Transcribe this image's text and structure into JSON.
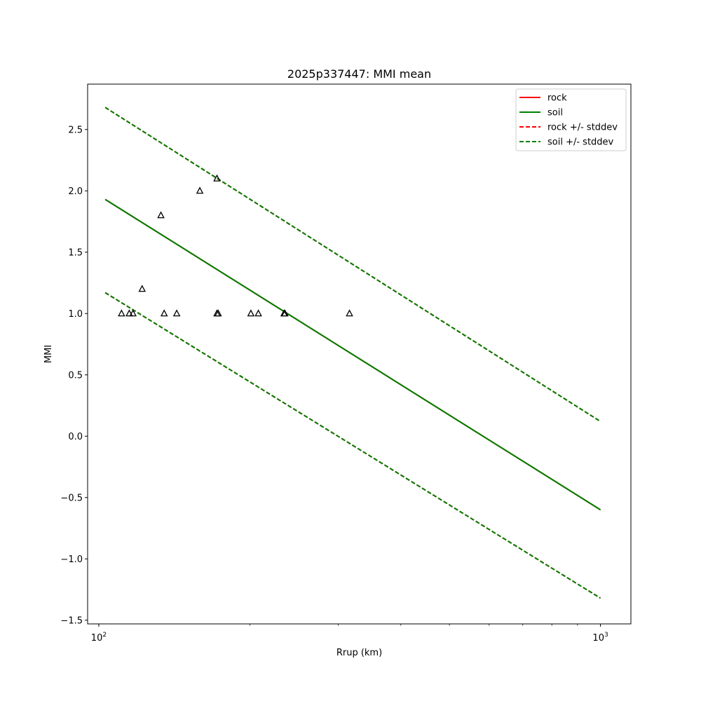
{
  "chart_data": {
    "type": "line",
    "title": "2025p337447: MMI mean",
    "xlabel": "Rrup (km)",
    "ylabel": "MMI",
    "xscale": "log",
    "xlim": [
      95,
      1150
    ],
    "ylim": [
      -1.53,
      2.87
    ],
    "x_ticks": [
      {
        "value": 100,
        "base": "10",
        "exp": "2"
      },
      {
        "value": 1000,
        "base": "10",
        "exp": "3"
      }
    ],
    "y_ticks": [
      -1.5,
      -1.0,
      -0.5,
      0.0,
      0.5,
      1.0,
      1.5,
      2.0,
      2.5
    ],
    "y_tick_labels": [
      "−1.5",
      "−1.0",
      "−0.5",
      "0.0",
      "0.5",
      "1.0",
      "1.5",
      "2.0",
      "2.5"
    ],
    "grid": false,
    "legend_position": "top-right",
    "series": [
      {
        "name": "rock",
        "style": "solid",
        "color": "#ff0000",
        "x": [
          103,
          1000
        ],
        "y": [
          1.93,
          -0.6
        ]
      },
      {
        "name": "soil",
        "style": "solid",
        "color": "#008000",
        "x": [
          103,
          1000
        ],
        "y": [
          1.93,
          -0.6
        ]
      },
      {
        "name": "rock +/- stddev",
        "style": "dashed",
        "color": "#ff0000",
        "x": [
          103,
          1000
        ],
        "y_upper": [
          2.68,
          0.12
        ],
        "y_lower": [
          1.17,
          -1.32
        ]
      },
      {
        "name": "soil +/- stddev",
        "style": "dashed",
        "color": "#008000",
        "x": [
          103,
          1000
        ],
        "y_upper": [
          2.68,
          0.12
        ],
        "y_lower": [
          1.17,
          -1.32
        ]
      }
    ],
    "observations": {
      "marker": "triangle",
      "points": [
        {
          "x": 111,
          "y": 1.0
        },
        {
          "x": 115,
          "y": 1.0
        },
        {
          "x": 117,
          "y": 1.0
        },
        {
          "x": 122,
          "y": 1.2
        },
        {
          "x": 133,
          "y": 1.8
        },
        {
          "x": 135,
          "y": 1.0
        },
        {
          "x": 143,
          "y": 1.0
        },
        {
          "x": 159,
          "y": 2.0
        },
        {
          "x": 172,
          "y": 2.1
        },
        {
          "x": 172,
          "y": 1.0
        },
        {
          "x": 173,
          "y": 1.0
        },
        {
          "x": 201,
          "y": 1.0
        },
        {
          "x": 208,
          "y": 1.0
        },
        {
          "x": 234,
          "y": 1.0
        },
        {
          "x": 235,
          "y": 1.0
        },
        {
          "x": 316,
          "y": 1.0
        }
      ]
    }
  }
}
